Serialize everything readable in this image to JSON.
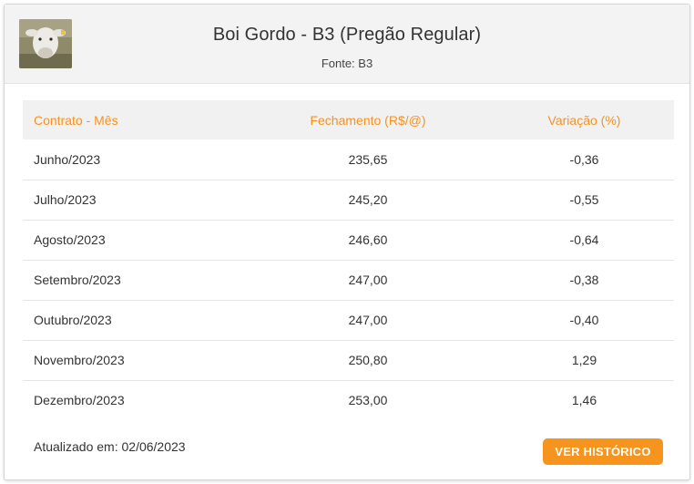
{
  "header": {
    "title": "Boi Gordo - B3 (Pregão Regular)",
    "source": "Fonte: B3",
    "thumbnail_icon": "cattle-photo"
  },
  "table": {
    "columns": [
      "Contrato - Mês",
      "Fechamento (R$/@)",
      "Variação (%)"
    ],
    "rows": [
      {
        "contract": "Junho/2023",
        "close": "235,65",
        "change": "-0,36"
      },
      {
        "contract": "Julho/2023",
        "close": "245,20",
        "change": "-0,55"
      },
      {
        "contract": "Agosto/2023",
        "close": "246,60",
        "change": "-0,64"
      },
      {
        "contract": "Setembro/2023",
        "close": "247,00",
        "change": "-0,38"
      },
      {
        "contract": "Outubro/2023",
        "close": "247,00",
        "change": "-0,40"
      },
      {
        "contract": "Novembro/2023",
        "close": "250,80",
        "change": "1,29"
      },
      {
        "contract": "Dezembro/2023",
        "close": "253,00",
        "change": "1,46"
      }
    ]
  },
  "footer": {
    "updated": "Atualizado em: 02/06/2023",
    "history_button": "VER HISTÓRICO"
  },
  "colors": {
    "accent": "#f7941d",
    "header_text": "#f7921e"
  }
}
